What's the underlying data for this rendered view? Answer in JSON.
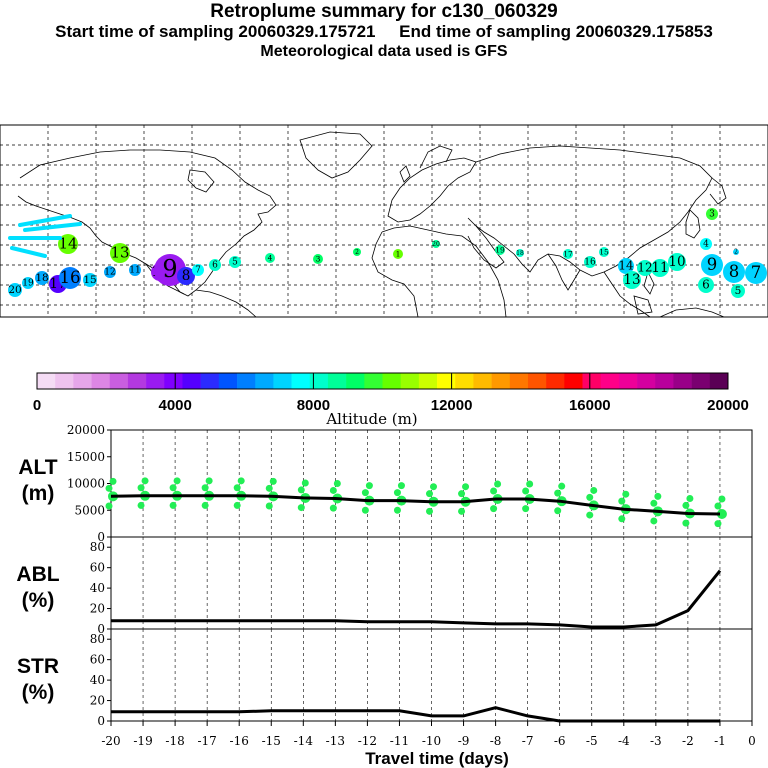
{
  "header": {
    "title": "Retroplume summary for c130_060329",
    "start_label": "Start time of sampling 20060329.175721",
    "end_label": "End time of sampling 20060329.175853",
    "met_label": "Meteorological data used is GFS"
  },
  "colorbar": {
    "label": "Altitude (m)",
    "ticks": [
      "0",
      "4000",
      "8000",
      "12000",
      "16000",
      "20000"
    ],
    "colors": [
      "#f5dcf5",
      "#efc3ef",
      "#e6a6ea",
      "#dd86e4",
      "#c95ee0",
      "#b339e0",
      "#9a1bf0",
      "#7f00ff",
      "#5500ff",
      "#2b2bff",
      "#0055ff",
      "#007fff",
      "#00aaff",
      "#00d4ff",
      "#00ffff",
      "#00ffcc",
      "#00ff99",
      "#00ff66",
      "#33ff33",
      "#66ff00",
      "#99ff00",
      "#ccff00",
      "#ffff00",
      "#ffdd00",
      "#ffbb00",
      "#ff9900",
      "#ff7700",
      "#ff5500",
      "#ff2a00",
      "#ff0000",
      "#ff0066",
      "#ff0088",
      "#ee0099",
      "#d400a0",
      "#b8009c",
      "#990088",
      "#7a0070",
      "#5a0055"
    ]
  },
  "map": {
    "label_numbers": [
      "20",
      "19",
      "18",
      "17",
      "16",
      "15",
      "14",
      "13",
      "12",
      "11",
      "10",
      "9",
      "8",
      "7",
      "6",
      "5",
      "4",
      "3",
      "2",
      "1"
    ]
  },
  "chart_data": [
    {
      "type": "line",
      "title": "ALT (m)",
      "name_top": "ALT",
      "name_bottom": "(m)",
      "ylim": [
        0,
        20000
      ],
      "yticks": [
        "0",
        "5000",
        "10000",
        "15000",
        "20000"
      ],
      "x": [
        -20,
        -19,
        -18,
        -17,
        -16,
        -15,
        -14,
        -13,
        -12,
        -11,
        -10,
        -9,
        -8,
        -7,
        -6,
        -5,
        -4,
        -3,
        -2,
        -1
      ],
      "values": [
        7600,
        7700,
        7700,
        7700,
        7700,
        7600,
        7300,
        7200,
        6800,
        6800,
        6600,
        6600,
        7100,
        7100,
        6700,
        5900,
        5200,
        4800,
        4400,
        4300
      ]
    },
    {
      "type": "line",
      "title": "ABL (%)",
      "name_top": "ABL",
      "name_bottom": "(%)",
      "ylim": [
        0,
        90
      ],
      "yticks": [
        "0",
        "20",
        "40",
        "60",
        "80"
      ],
      "x": [
        -20,
        -19,
        -18,
        -17,
        -16,
        -15,
        -14,
        -13,
        -12,
        -11,
        -10,
        -9,
        -8,
        -7,
        -6,
        -5,
        -4,
        -3,
        -2,
        -1
      ],
      "values": [
        8,
        8,
        8,
        8,
        8,
        8,
        8,
        8,
        7,
        7,
        7,
        6,
        5,
        5,
        4,
        2,
        2,
        4,
        18,
        57
      ]
    },
    {
      "type": "line",
      "title": "STR (%)",
      "name_top": "STR",
      "name_bottom": "(%)",
      "ylim": [
        0,
        90
      ],
      "yticks": [
        "0",
        "20",
        "40",
        "60",
        "80"
      ],
      "x": [
        -20,
        -19,
        -18,
        -17,
        -16,
        -15,
        -14,
        -13,
        -12,
        -11,
        -10,
        -9,
        -8,
        -7,
        -6,
        -5,
        -4,
        -3,
        -2,
        -1
      ],
      "values": [
        9,
        9,
        9,
        9,
        9,
        10,
        10,
        10,
        10,
        10,
        5,
        5,
        13,
        5,
        0,
        0,
        0,
        0,
        0,
        0
      ]
    }
  ],
  "xaxis": {
    "label": "Travel time (days)",
    "ticks": [
      "-20",
      "-19",
      "-18",
      "-17",
      "-16",
      "-15",
      "-14",
      "-13",
      "-12",
      "-11",
      "-10",
      "-9",
      "-8",
      "-7",
      "-6",
      "-5",
      "-4",
      "-3",
      "-2",
      "-1",
      "0"
    ]
  }
}
